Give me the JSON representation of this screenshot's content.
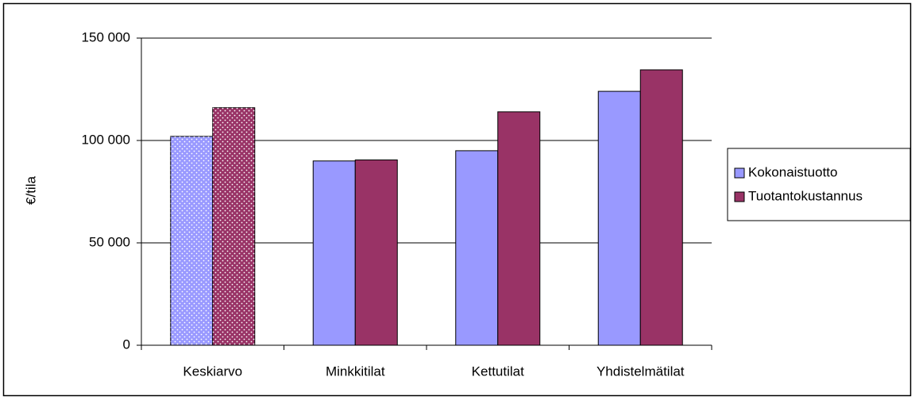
{
  "chart_data": {
    "type": "bar",
    "y_label": "€/tila",
    "categories": [
      "Keskiarvo",
      "Minkkitilat",
      "Kettutilat",
      "Yhdistelmätilat"
    ],
    "series": [
      {
        "name": "Kokonaistuotto",
        "color": "#9999ff",
        "values": [
          102000,
          90000,
          95000,
          124000
        ]
      },
      {
        "name": "Tuotantokustannus",
        "color": "#993366",
        "values": [
          116000,
          90500,
          114000,
          134500
        ]
      }
    ],
    "dotted_categories": [
      0
    ],
    "ylim": [
      0,
      150000
    ],
    "yticks": [
      0,
      {
        "value": 50000,
        "label": "50 000"
      },
      {
        "value": 100000,
        "label": "100 000"
      },
      {
        "value": 150000,
        "label": "150 000"
      }
    ],
    "grid": true,
    "legend": "right"
  }
}
